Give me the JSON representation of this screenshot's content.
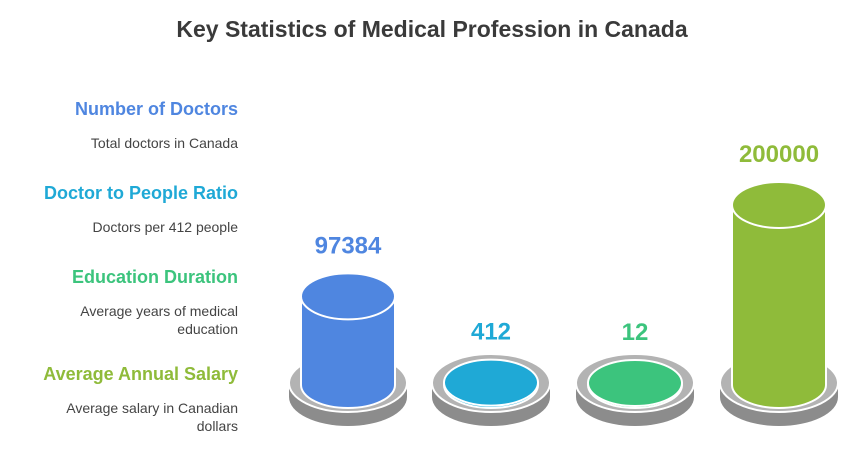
{
  "chart_data": {
    "type": "bar",
    "title": "Key Statistics of Medical Profession in Canada",
    "categories": [
      "Number of Doctors",
      "Doctor to People Ratio",
      "Education Duration",
      "Average Annual Salary"
    ],
    "descriptions": [
      "Total doctors in Canada",
      "Doctors per 412 people",
      "Average years of medical education",
      "Average salary in Canadian dollars"
    ],
    "values": [
      97384,
      412,
      12,
      200000
    ],
    "value_labels": [
      "97384",
      "412",
      "12",
      "200000"
    ],
    "colors": [
      "#4f86e0",
      "#1fa9d6",
      "#3cc47d",
      "#8fbb3a"
    ],
    "legend_placement": "left"
  }
}
